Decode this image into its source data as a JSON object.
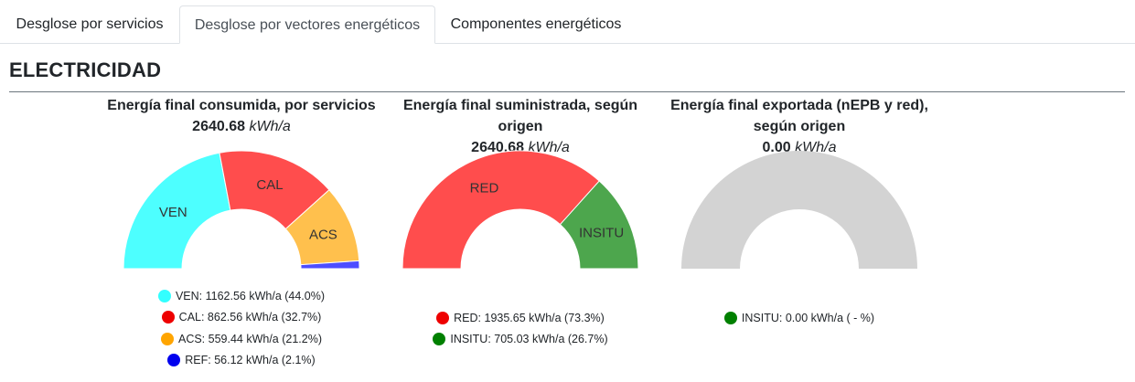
{
  "tabs": [
    {
      "label": "Desglose por servicios",
      "active": false
    },
    {
      "label": "Desglose por vectores energéticos",
      "active": true
    },
    {
      "label": "Componentes energéticos",
      "active": false
    }
  ],
  "section": {
    "title": "ELECTRICIDAD"
  },
  "panels": [
    {
      "title_lines": [
        "Energía final consumida, por servicios"
      ],
      "total_value": "2640.68",
      "unit": "kWh/a"
    },
    {
      "title_lines": [
        "Energía final suministrada, según",
        "origen"
      ],
      "total_value": "2640.68",
      "unit": "kWh/a"
    },
    {
      "title_lines": [
        "Energía final exportada (nEPB y red),",
        "según origen"
      ],
      "total_value": "0.00",
      "unit": "kWh/a"
    }
  ],
  "chart_data": [
    {
      "type": "pie",
      "title": "Energía final consumida, por servicios",
      "categories": [
        "VEN",
        "CAL",
        "ACS",
        "REF"
      ],
      "values": [
        1162.56,
        862.56,
        559.44,
        56.12
      ],
      "percentages": [
        44.0,
        32.7,
        21.2,
        2.1
      ],
      "colors": [
        "#4dffff",
        "#ff4d4d",
        "#ffc04d",
        "#4d4dff"
      ],
      "legend_colors": [
        "#33ffff",
        "#ee0000",
        "#ffa500",
        "#0000ee"
      ],
      "legend": [
        "VEN: 1162.56 kWh/a (44.0%)",
        "CAL: 862.56 kWh/a (32.7%)",
        "ACS: 559.44 kWh/a (21.2%)",
        "REF: 56.12 kWh/a (2.1%)"
      ]
    },
    {
      "type": "pie",
      "title": "Energía final suministrada, según origen",
      "categories": [
        "RED",
        "INSITU"
      ],
      "values": [
        1935.65,
        705.03
      ],
      "percentages": [
        73.3,
        26.7
      ],
      "colors": [
        "#ff4d4d",
        "#4da64d"
      ],
      "legend_colors": [
        "#ee0000",
        "#008000"
      ],
      "legend": [
        "RED: 1935.65 kWh/a (73.3%)",
        "INSITU: 705.03 kWh/a (26.7%)"
      ]
    },
    {
      "type": "pie",
      "title": "Energía final exportada (nEPB y red), según origen",
      "categories": [
        "INSITU"
      ],
      "values": [
        0.0
      ],
      "percentages": [],
      "colors": [
        "#d3d3d3"
      ],
      "legend_colors": [
        "#008000"
      ],
      "legend": [
        "INSITU: 0.00 kWh/a ( - %)"
      ],
      "empty": true
    }
  ]
}
